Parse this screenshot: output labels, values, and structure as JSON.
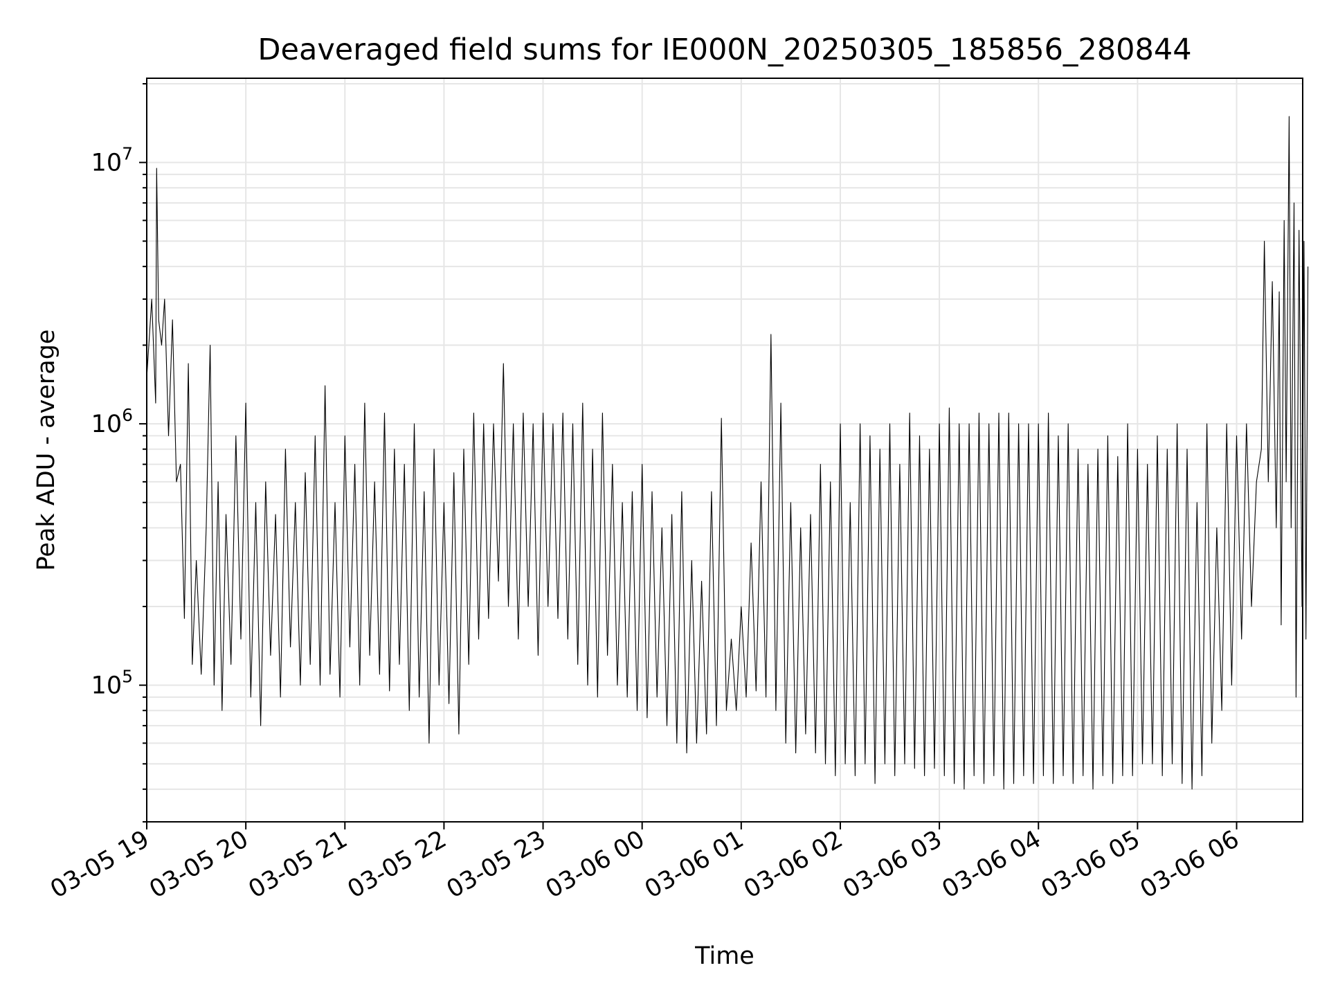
{
  "chart_data": {
    "type": "line",
    "title": "Deaveraged field sums for IE000N_20250305_185856_280844",
    "xlabel": "Time",
    "ylabel": "Peak ADU - average",
    "xlim": [
      "2025-03-05 19:00",
      "2025-03-06 06:40"
    ],
    "ylim": [
      30000,
      21000000
    ],
    "yscale": "log",
    "grid": true,
    "x_ticks": [
      {
        "t": 0,
        "label": "03-05 19"
      },
      {
        "t": 1,
        "label": "03-05 20"
      },
      {
        "t": 2,
        "label": "03-05 21"
      },
      {
        "t": 3,
        "label": "03-05 22"
      },
      {
        "t": 4,
        "label": "03-05 23"
      },
      {
        "t": 5,
        "label": "03-06 00"
      },
      {
        "t": 6,
        "label": "03-06 01"
      },
      {
        "t": 7,
        "label": "03-06 02"
      },
      {
        "t": 8,
        "label": "03-06 03"
      },
      {
        "t": 9,
        "label": "03-06 04"
      },
      {
        "t": 10,
        "label": "03-06 05"
      },
      {
        "t": 11,
        "label": "03-06 06"
      }
    ],
    "y_ticks": [
      {
        "value": 100000,
        "base": "10",
        "exp": "5"
      },
      {
        "value": 1000000,
        "base": "10",
        "exp": "6"
      },
      {
        "value": 10000000,
        "base": "10",
        "exp": "7"
      }
    ],
    "series": [
      {
        "color": "#000000",
        "points": [
          [
            0.0,
            1500000
          ],
          [
            0.05,
            3000000
          ],
          [
            0.09,
            1200000
          ],
          [
            0.1,
            9500000
          ],
          [
            0.12,
            2500000
          ],
          [
            0.15,
            2000000
          ],
          [
            0.18,
            3000000
          ],
          [
            0.22,
            900000
          ],
          [
            0.26,
            2500000
          ],
          [
            0.3,
            600000
          ],
          [
            0.34,
            700000
          ],
          [
            0.38,
            180000
          ],
          [
            0.42,
            1700000
          ],
          [
            0.46,
            120000
          ],
          [
            0.5,
            300000
          ],
          [
            0.55,
            110000
          ],
          [
            0.6,
            400000
          ],
          [
            0.64,
            2000000
          ],
          [
            0.68,
            100000
          ],
          [
            0.72,
            600000
          ],
          [
            0.76,
            80000
          ],
          [
            0.8,
            450000
          ],
          [
            0.85,
            120000
          ],
          [
            0.9,
            900000
          ],
          [
            0.95,
            150000
          ],
          [
            1.0,
            1200000
          ],
          [
            1.05,
            90000
          ],
          [
            1.1,
            500000
          ],
          [
            1.15,
            70000
          ],
          [
            1.2,
            600000
          ],
          [
            1.25,
            130000
          ],
          [
            1.3,
            450000
          ],
          [
            1.35,
            90000
          ],
          [
            1.4,
            800000
          ],
          [
            1.45,
            140000
          ],
          [
            1.5,
            500000
          ],
          [
            1.55,
            100000
          ],
          [
            1.6,
            650000
          ],
          [
            1.65,
            120000
          ],
          [
            1.7,
            900000
          ],
          [
            1.75,
            100000
          ],
          [
            1.8,
            1400000
          ],
          [
            1.85,
            110000
          ],
          [
            1.9,
            500000
          ],
          [
            1.95,
            90000
          ],
          [
            2.0,
            900000
          ],
          [
            2.05,
            140000
          ],
          [
            2.1,
            700000
          ],
          [
            2.15,
            100000
          ],
          [
            2.2,
            1200000
          ],
          [
            2.25,
            130000
          ],
          [
            2.3,
            600000
          ],
          [
            2.35,
            110000
          ],
          [
            2.4,
            1100000
          ],
          [
            2.45,
            95000
          ],
          [
            2.5,
            800000
          ],
          [
            2.55,
            120000
          ],
          [
            2.6,
            700000
          ],
          [
            2.65,
            80000
          ],
          [
            2.7,
            1000000
          ],
          [
            2.75,
            90000
          ],
          [
            2.8,
            550000
          ],
          [
            2.85,
            60000
          ],
          [
            2.9,
            800000
          ],
          [
            2.95,
            100000
          ],
          [
            3.0,
            500000
          ],
          [
            3.05,
            85000
          ],
          [
            3.1,
            650000
          ],
          [
            3.15,
            65000
          ],
          [
            3.2,
            800000
          ],
          [
            3.25,
            120000
          ],
          [
            3.3,
            1100000
          ],
          [
            3.35,
            150000
          ],
          [
            3.4,
            1000000
          ],
          [
            3.45,
            180000
          ],
          [
            3.5,
            1000000
          ],
          [
            3.55,
            250000
          ],
          [
            3.6,
            1700000
          ],
          [
            3.65,
            200000
          ],
          [
            3.7,
            1000000
          ],
          [
            3.75,
            150000
          ],
          [
            3.8,
            1100000
          ],
          [
            3.85,
            200000
          ],
          [
            3.9,
            1000000
          ],
          [
            3.95,
            130000
          ],
          [
            4.0,
            1100000
          ],
          [
            4.05,
            200000
          ],
          [
            4.1,
            1000000
          ],
          [
            4.15,
            180000
          ],
          [
            4.2,
            1100000
          ],
          [
            4.25,
            150000
          ],
          [
            4.3,
            1000000
          ],
          [
            4.35,
            120000
          ],
          [
            4.4,
            1200000
          ],
          [
            4.45,
            100000
          ],
          [
            4.5,
            800000
          ],
          [
            4.55,
            90000
          ],
          [
            4.6,
            1100000
          ],
          [
            4.65,
            130000
          ],
          [
            4.7,
            700000
          ],
          [
            4.75,
            100000
          ],
          [
            4.8,
            500000
          ],
          [
            4.85,
            90000
          ],
          [
            4.9,
            550000
          ],
          [
            4.95,
            80000
          ],
          [
            5.0,
            700000
          ],
          [
            5.05,
            75000
          ],
          [
            5.1,
            550000
          ],
          [
            5.15,
            90000
          ],
          [
            5.2,
            400000
          ],
          [
            5.25,
            70000
          ],
          [
            5.3,
            450000
          ],
          [
            5.35,
            60000
          ],
          [
            5.4,
            550000
          ],
          [
            5.45,
            55000
          ],
          [
            5.5,
            300000
          ],
          [
            5.55,
            60000
          ],
          [
            5.6,
            250000
          ],
          [
            5.65,
            65000
          ],
          [
            5.7,
            550000
          ],
          [
            5.75,
            70000
          ],
          [
            5.8,
            1050000
          ],
          [
            5.85,
            80000
          ],
          [
            5.9,
            150000
          ],
          [
            5.95,
            80000
          ],
          [
            6.0,
            200000
          ],
          [
            6.05,
            90000
          ],
          [
            6.1,
            350000
          ],
          [
            6.15,
            95000
          ],
          [
            6.2,
            600000
          ],
          [
            6.25,
            90000
          ],
          [
            6.3,
            2200000
          ],
          [
            6.35,
            80000
          ],
          [
            6.4,
            1200000
          ],
          [
            6.45,
            60000
          ],
          [
            6.5,
            500000
          ],
          [
            6.55,
            55000
          ],
          [
            6.6,
            400000
          ],
          [
            6.65,
            65000
          ],
          [
            6.7,
            450000
          ],
          [
            6.75,
            55000
          ],
          [
            6.8,
            700000
          ],
          [
            6.85,
            50000
          ],
          [
            6.9,
            600000
          ],
          [
            6.95,
            45000
          ],
          [
            7.0,
            1000000
          ],
          [
            7.05,
            50000
          ],
          [
            7.1,
            500000
          ],
          [
            7.15,
            45000
          ],
          [
            7.2,
            1000000
          ],
          [
            7.25,
            50000
          ],
          [
            7.3,
            900000
          ],
          [
            7.35,
            42000
          ],
          [
            7.4,
            800000
          ],
          [
            7.45,
            50000
          ],
          [
            7.5,
            1000000
          ],
          [
            7.55,
            45000
          ],
          [
            7.6,
            700000
          ],
          [
            7.65,
            50000
          ],
          [
            7.7,
            1100000
          ],
          [
            7.75,
            48000
          ],
          [
            7.8,
            900000
          ],
          [
            7.85,
            45000
          ],
          [
            7.9,
            800000
          ],
          [
            7.95,
            48000
          ],
          [
            8.0,
            1000000
          ],
          [
            8.05,
            45000
          ],
          [
            8.1,
            1150000
          ],
          [
            8.15,
            42000
          ],
          [
            8.2,
            1000000
          ],
          [
            8.25,
            40000
          ],
          [
            8.3,
            1000000
          ],
          [
            8.35,
            45000
          ],
          [
            8.4,
            1100000
          ],
          [
            8.45,
            42000
          ],
          [
            8.5,
            1000000
          ],
          [
            8.55,
            45000
          ],
          [
            8.6,
            1100000
          ],
          [
            8.65,
            40000
          ],
          [
            8.7,
            1100000
          ],
          [
            8.75,
            42000
          ],
          [
            8.8,
            1000000
          ],
          [
            8.85,
            45000
          ],
          [
            8.9,
            1000000
          ],
          [
            8.95,
            42000
          ],
          [
            9.0,
            1000000
          ],
          [
            9.05,
            45000
          ],
          [
            9.1,
            1100000
          ],
          [
            9.15,
            42000
          ],
          [
            9.2,
            900000
          ],
          [
            9.25,
            45000
          ],
          [
            9.3,
            1000000
          ],
          [
            9.35,
            42000
          ],
          [
            9.4,
            800000
          ],
          [
            9.45,
            45000
          ],
          [
            9.5,
            700000
          ],
          [
            9.55,
            40000
          ],
          [
            9.6,
            800000
          ],
          [
            9.65,
            45000
          ],
          [
            9.7,
            900000
          ],
          [
            9.75,
            42000
          ],
          [
            9.8,
            750000
          ],
          [
            9.85,
            45000
          ],
          [
            9.9,
            1000000
          ],
          [
            9.95,
            45000
          ],
          [
            10.0,
            800000
          ],
          [
            10.05,
            50000
          ],
          [
            10.1,
            700000
          ],
          [
            10.15,
            50000
          ],
          [
            10.2,
            900000
          ],
          [
            10.25,
            45000
          ],
          [
            10.3,
            800000
          ],
          [
            10.35,
            50000
          ],
          [
            10.4,
            1000000
          ],
          [
            10.45,
            42000
          ],
          [
            10.5,
            800000
          ],
          [
            10.55,
            40000
          ],
          [
            10.6,
            500000
          ],
          [
            10.65,
            45000
          ],
          [
            10.7,
            1000000
          ],
          [
            10.75,
            60000
          ],
          [
            10.8,
            400000
          ],
          [
            10.85,
            80000
          ],
          [
            10.9,
            1000000
          ],
          [
            10.95,
            100000
          ],
          [
            11.0,
            900000
          ],
          [
            11.05,
            150000
          ],
          [
            11.1,
            1000000
          ],
          [
            11.15,
            200000
          ],
          [
            11.2,
            600000
          ],
          [
            11.25,
            800000
          ],
          [
            11.28,
            5000000
          ],
          [
            11.32,
            600000
          ],
          [
            11.36,
            3500000
          ],
          [
            11.4,
            400000
          ],
          [
            11.43,
            3200000
          ],
          [
            11.45,
            170000
          ],
          [
            11.48,
            6000000
          ],
          [
            11.5,
            600000
          ],
          [
            11.53,
            15000000
          ],
          [
            11.55,
            400000
          ],
          [
            11.58,
            7000000
          ],
          [
            11.6,
            90000
          ],
          [
            11.63,
            5500000
          ],
          [
            11.66,
            200000
          ],
          [
            11.68,
            5000000
          ],
          [
            11.7,
            150000
          ],
          [
            11.72,
            4000000
          ]
        ]
      }
    ]
  }
}
